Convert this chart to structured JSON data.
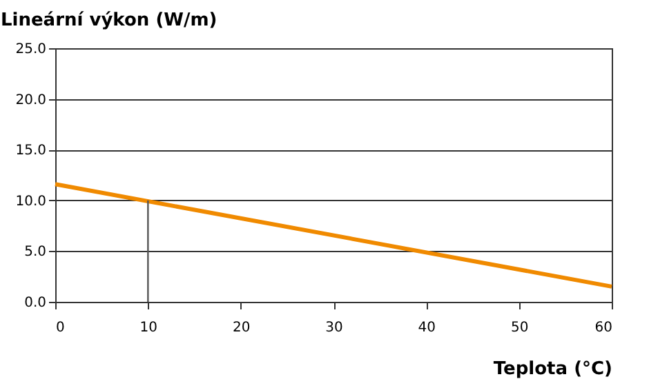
{
  "chart_data": {
    "type": "line",
    "xlabel": "Teplota (°C)",
    "ylabel": "Lineární výkon (W/m)",
    "series": [
      {
        "color": "#f08a00",
        "x": [
          0,
          60
        ],
        "values": [
          11.6,
          1.5
        ]
      },
      {
        "color": "#555555",
        "x": [
          10,
          10
        ],
        "values": [
          0,
          10
        ]
      }
    ],
    "xlim": [
      0,
      60
    ],
    "xticks": [
      0,
      10,
      20,
      30,
      40,
      50,
      60
    ],
    "ylim": [
      0,
      25
    ],
    "yticks": [
      {
        "value": 0,
        "label": "0.0"
      },
      {
        "value": 5,
        "label": "5.0"
      },
      {
        "value": 10,
        "label": "10.0"
      },
      {
        "value": 15,
        "label": "15.0"
      },
      {
        "value": 20,
        "label": "20.0"
      },
      {
        "value": 25,
        "label": "25.0"
      }
    ],
    "grid": "y"
  }
}
